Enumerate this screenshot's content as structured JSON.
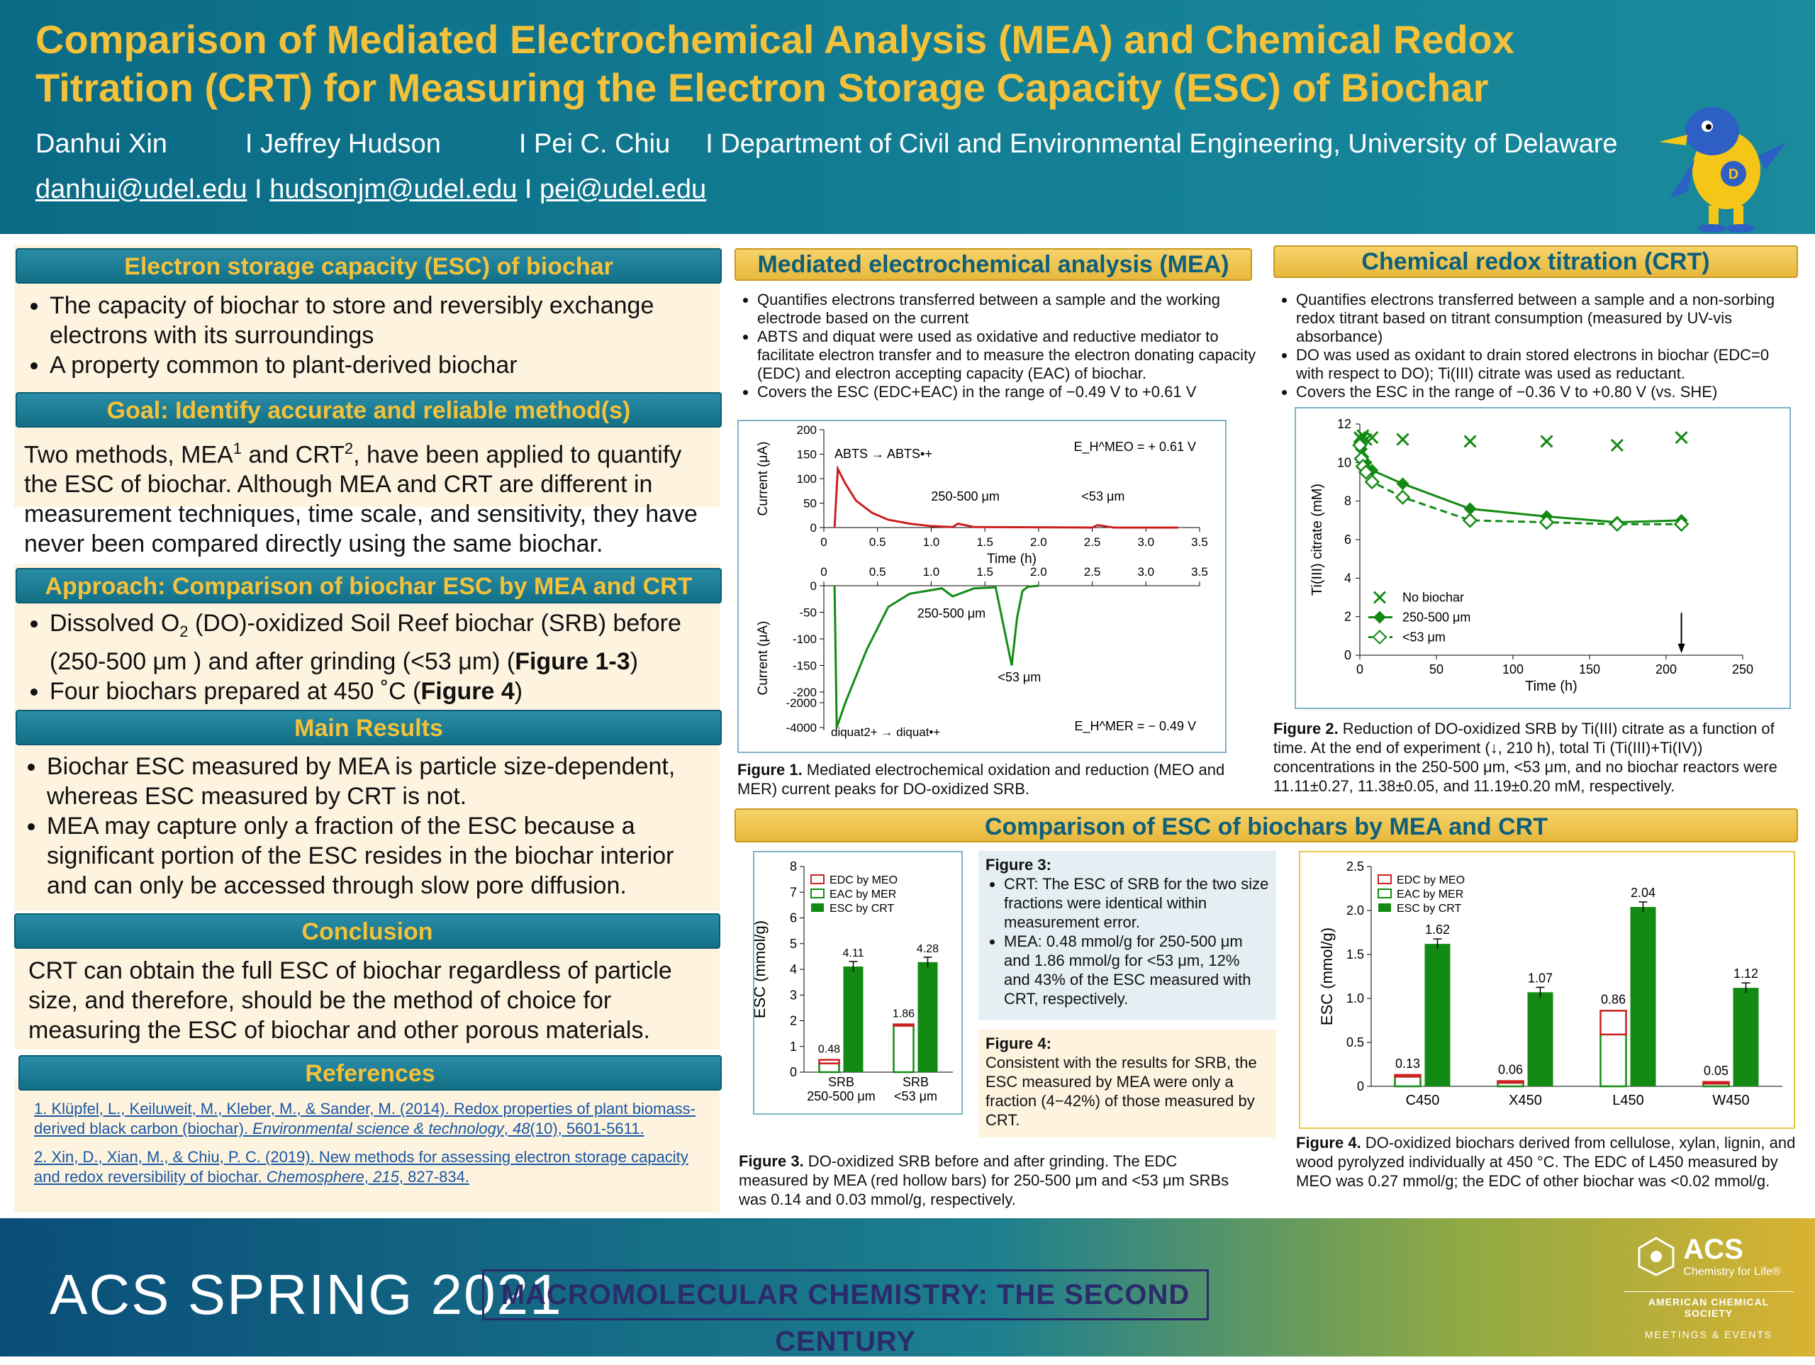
{
  "header": {
    "title_line1": "Comparison of Mediated Electrochemical Analysis (MEA) and Chemical Redox",
    "title_line2": "Titration (CRT) for Measuring the Electron Storage Capacity (ESC) of Biochar",
    "authors": [
      "Danhui Xin",
      "I Jeffrey Hudson",
      "I Pei C. Chiu",
      "I Department of Civil and Environmental Engineering, University of Delaware"
    ],
    "emails": [
      "danhui@udel.edu",
      "hudsonjm@udel.edu",
      "pei@udel.edu"
    ],
    "email_sep": " I "
  },
  "left": {
    "esc_title": "Electron storage capacity (ESC) of biochar",
    "esc_points": [
      "The capacity of biochar to store and reversibly exchange electrons with its surroundings",
      "A property common to plant-derived biochar"
    ],
    "goal_title": "Goal: Identify accurate and reliable method(s)",
    "goal_text_a": "Two methods, MEA",
    "goal_sup1": "1",
    "goal_text_b": " and CRT",
    "goal_sup2": "2",
    "goal_text_c": ", have been applied to quantify the ESC of biochar. Although MEA and CRT are different in measurement techniques, time scale, and sensitivity, they have never been compared directly using the same biochar.",
    "approach_title": "Approach: Comparison of biochar ESC by MEA and CRT",
    "approach_1a": "Dissolved O",
    "approach_1sub": "2",
    "approach_1b": " (DO)-oxidized Soil Reef biochar (SRB) before (250-500 μm ) and after grinding (<53 μm) (",
    "approach_1fig": "Figure 1-3",
    "approach_1c": ")",
    "approach_2a": "Four biochars prepared at 450 ˚C (",
    "approach_2fig": "Figure 4",
    "approach_2b": ")",
    "results_title": "Main Results",
    "results_points": [
      "Biochar ESC measured by MEA is particle size-dependent, whereas ESC measured by CRT is not.",
      "MEA may capture only a fraction of the ESC because a significant portion of the ESC resides in the biochar interior and can only be accessed through slow pore diffusion."
    ],
    "conclusion_title": "Conclusion",
    "conclusion_text": "CRT can obtain the full ESC of biochar regardless of particle size, and therefore, should be the method of choice for measuring the ESC of biochar and other porous materials.",
    "references_title": "References",
    "ref1_a": "1. Klüpfel, L., Keiluweit, M., Kleber, M., & Sander, M. (2014). Redox properties of plant biomass-derived black carbon (biochar). ",
    "ref1_journal": "Environmental science & technology",
    "ref1_b": ", ",
    "ref1_vol": "48",
    "ref1_c": "(10), 5601-5611.",
    "ref2_a": "2. Xin, D., Xian, M., & Chiu, P. C. (2019). New methods for assessing electron storage capacity and redox reversibility of biochar. ",
    "ref2_journal": "Chemosphere",
    "ref2_b": ", ",
    "ref2_vol": "215",
    "ref2_c": ", 827-834."
  },
  "mea": {
    "title": "Mediated electrochemical analysis (MEA)",
    "points": [
      "Quantifies electrons transferred between a sample and the working electrode based on the current",
      "ABTS and diquat were used as oxidative and reductive mediator to facilitate electron transfer and to measure the electron donating capacity (EDC) and electron accepting capacity (EAC) of biochar.",
      "Covers the ESC (EDC+EAC) in the range of −0.49 V to +0.61 V"
    ],
    "fig1_bold": "Figure 1.",
    "fig1_caption": " Mediated electrochemical oxidation and reduction (MEO and MER) current peaks for DO-oxidized SRB."
  },
  "crt": {
    "title": "Chemical redox titration (CRT)",
    "points": [
      "Quantifies electrons transferred between a sample and a non-sorbing redox titrant based on titrant consumption (measured by UV-vis absorbance)",
      "DO was used as oxidant to drain stored electrons in biochar (EDC=0 with respect to DO); Ti(III) citrate was used as reductant.",
      "Covers the ESC in the range of −0.36 V to +0.80 V (vs. SHE)"
    ],
    "fig2_bold": "Figure 2.",
    "fig2_caption": " Reduction of DO-oxidized SRB by Ti(III) citrate as a function of time. At the end of experiment (↓, 210 h), total Ti (Ti(III)+Ti(IV)) concentrations in the 250-500 μm, <53 μm, and no biochar reactors were 11.11±0.27, 11.38±0.05, and 11.19±0.20 mM, respectively."
  },
  "compare": {
    "title": "Comparison of  ESC of biochars by MEA and CRT",
    "fig3_note_title": "Figure 3:",
    "fig3_note_points": [
      "CRT: The ESC of SRB for the two size fractions were identical within measurement error.",
      "MEA: 0.48 mmol/g for 250-500 μm and 1.86 mmol/g for <53 μm, 12% and 43% of the ESC measured with CRT, respectively."
    ],
    "fig4_note_title": "Figure 4:",
    "fig4_note_text": "Consistent with the results for SRB, the ESC measured by MEA were only a fraction (4−42%) of those measured by CRT.",
    "fig3_bold": "Figure 3.",
    "fig3_caption": " DO-oxidized SRB before and after grinding. The EDC measured by MEA (red hollow bars) for 250-500 μm and <53 μm SRBs was 0.14 and 0.03 mmol/g, respectively.",
    "fig4_bold": "Figure 4.",
    "fig4_caption": " DO-oxidized biochars derived from cellulose, xylan, lignin, and wood pyrolyzed individually at 450 °C. The EDC of L450 measured by MEO was 0.27 mmol/g; the EDC of other biochar was <0.02 mmol/g."
  },
  "footer": {
    "acs_spring": "ACS SPRING 2021",
    "theme": "MACROMOLECULAR CHEMISTRY: THE SECOND CENTURY",
    "logo_acs": "ACS",
    "logo_tag": "Chemistry for Life®",
    "logo_society": "AMERICAN CHEMICAL SOCIETY",
    "logo_meetings": "MEETINGS & EVENTS"
  },
  "chart_data": [
    {
      "type": "line",
      "title": "Figure 1 (top) MEO",
      "xlabel": "Time (h)",
      "ylabel": "Current (μA)",
      "xlim": [
        0,
        3.5
      ],
      "ylim": [
        0,
        200
      ],
      "xticks": [
        "0",
        "0.5",
        "1.0",
        "1.5",
        "2.0",
        "2.5",
        "3.0",
        "3.5"
      ],
      "yticks": [
        "0",
        "50",
        "100",
        "150",
        "200"
      ],
      "annotations": [
        "ABTS → ABTS•+",
        "250-500 μm",
        "<53 μm",
        "E_H^MEO = + 0.61 V"
      ],
      "series": [
        {
          "x": [
            0.1,
            0.13,
            0.2,
            0.3,
            0.45,
            0.6,
            0.8,
            1.0,
            1.2,
            1.25,
            1.4,
            2.5,
            2.55,
            2.7,
            3.3
          ],
          "y": [
            0,
            120,
            90,
            55,
            30,
            16,
            8,
            3,
            1,
            8,
            1,
            0,
            5,
            0,
            0
          ]
        }
      ]
    },
    {
      "type": "line",
      "title": "Figure 1 (bottom) MER",
      "xlabel": "",
      "ylabel": "Current (μA)",
      "xlim": [
        0,
        3.5
      ],
      "ylim": [
        -4000,
        0
      ],
      "xticks": [
        "0",
        "0.5",
        "1.0",
        "1.5",
        "2.0",
        "2.5",
        "3.0",
        "3.5"
      ],
      "yticks": [
        "0",
        "-50",
        "-100",
        "-150",
        "-200",
        "-2000",
        "-4000"
      ],
      "annotations": [
        "250-500 μm",
        "<53 μm",
        "diquat2+ → diquat•+",
        "E_H^MER = − 0.49 V"
      ],
      "series": [
        {
          "x": [
            0.1,
            0.12,
            0.2,
            0.4,
            0.6,
            0.8,
            1.1,
            1.2,
            1.4,
            1.6,
            1.75,
            1.8,
            1.85,
            1.9,
            2.0
          ],
          "y": [
            0,
            -4000,
            -2000,
            -120,
            -40,
            -15,
            -5,
            -20,
            -5,
            -3,
            -150,
            -60,
            -10,
            -2,
            0
          ]
        }
      ]
    },
    {
      "type": "line",
      "title": "Figure 2",
      "xlabel": "Time (h)",
      "ylabel": "Ti(III) citrate (mM)",
      "xlim": [
        0,
        250
      ],
      "ylim": [
        0,
        12
      ],
      "xticks": [
        "0",
        "50",
        "100",
        "150",
        "200",
        "250"
      ],
      "yticks": [
        "0",
        "2",
        "4",
        "6",
        "8",
        "10",
        "12"
      ],
      "legend": "lower-left",
      "annotations": [
        "↓ 210 h"
      ],
      "series": [
        {
          "name": "No biochar",
          "x": [
            0,
            1,
            2,
            4,
            8,
            28,
            72,
            122,
            168,
            210
          ],
          "y": [
            11.3,
            11.2,
            11.4,
            11.2,
            11.3,
            11.2,
            11.1,
            11.1,
            10.9,
            11.3
          ]
        },
        {
          "name": "250-500 μm",
          "x": [
            0,
            1,
            2,
            4,
            8,
            28,
            72,
            122,
            168,
            210
          ],
          "y": [
            11.1,
            10.7,
            10.3,
            10.0,
            9.6,
            8.9,
            7.6,
            7.2,
            6.9,
            7.0
          ]
        },
        {
          "name": "<53 μm",
          "x": [
            0,
            1,
            2,
            4,
            8,
            28,
            72,
            122,
            168,
            210
          ],
          "y": [
            10.9,
            10.2,
            9.8,
            9.5,
            9.0,
            8.2,
            7.0,
            6.9,
            6.8,
            6.8
          ]
        }
      ]
    },
    {
      "type": "bar",
      "title": "Figure 3",
      "xlabel": "",
      "ylabel": "ESC (mmol/g)",
      "ylim": [
        0,
        8
      ],
      "yticks": [
        "0",
        "1",
        "2",
        "3",
        "4",
        "5",
        "6",
        "7",
        "8"
      ],
      "categories": [
        "SRB 250-500 μm",
        "SRB <53 μm"
      ],
      "category_lines": [
        [
          "SRB",
          "250-500 μm"
        ],
        [
          "SRB",
          "<53 μm"
        ]
      ],
      "legend": "top-left",
      "series": [
        {
          "name": "EDC by MEO",
          "values": [
            0.14,
            0.03
          ]
        },
        {
          "name": "EAC by MER",
          "values": [
            0.34,
            1.83
          ]
        },
        {
          "name": "ESC by CRT",
          "values": [
            4.11,
            4.28
          ]
        }
      ],
      "data_labels": [
        "0.48",
        "4.11",
        "1.86",
        "4.28"
      ],
      "errors": [
        0.2,
        0.2
      ]
    },
    {
      "type": "bar",
      "title": "Figure 4",
      "xlabel": "",
      "ylabel": "ESC (mmol/g)",
      "ylim": [
        0,
        2.5
      ],
      "yticks": [
        "0",
        "0.5",
        "1.0",
        "1.5",
        "2.0",
        "2.5"
      ],
      "categories": [
        "C450",
        "X450",
        "L450",
        "W450"
      ],
      "legend": "top-left",
      "series": [
        {
          "name": "EDC by MEO",
          "values": [
            0.02,
            0.02,
            0.27,
            0.02
          ]
        },
        {
          "name": "EAC by MER",
          "values": [
            0.11,
            0.04,
            0.59,
            0.03
          ]
        },
        {
          "name": "ESC by CRT",
          "values": [
            1.62,
            1.07,
            2.04,
            1.12
          ]
        }
      ],
      "data_labels_mea": [
        "0.13",
        "0.06",
        "0.86",
        "0.05"
      ],
      "data_labels_crt": [
        "1.62",
        "1.07",
        "2.04",
        "1.12"
      ]
    }
  ],
  "colors": {
    "teal": "#127087",
    "gold": "#f3c13a",
    "navy": "#0d5f7c",
    "red": "#cc1f1f",
    "green": "#138a13"
  }
}
